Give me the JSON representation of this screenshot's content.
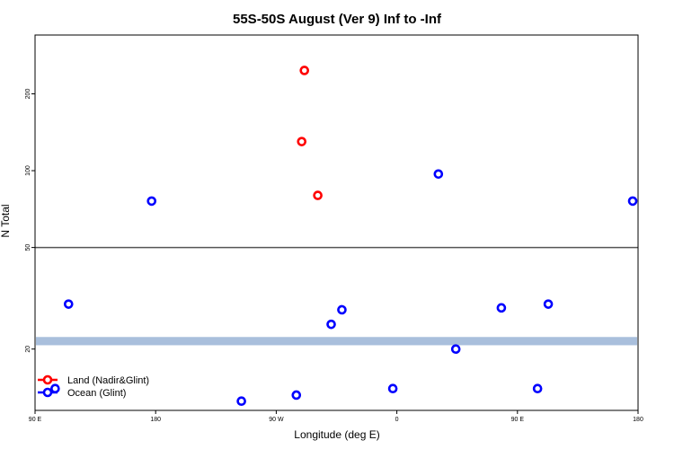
{
  "chart_data": {
    "type": "scatter",
    "title": "55S-50S August (Ver 9)   Inf to -Inf",
    "xlabel": "Longitude (deg E)",
    "ylabel": "N Total",
    "y_scale": "log",
    "x_ticks": [
      {
        "value": 0,
        "label": "90 E"
      },
      {
        "value": 90,
        "label": "180"
      },
      {
        "value": 180,
        "label": "90 W"
      },
      {
        "value": 270,
        "label": "0"
      },
      {
        "value": 360,
        "label": "90 E"
      },
      {
        "value": 450,
        "label": "180"
      }
    ],
    "xlim": [
      0,
      450
    ],
    "ylim": [
      11.5,
      340
    ],
    "y_ticks": [
      20,
      50,
      100,
      200
    ],
    "reference_line": 50,
    "band": {
      "low": 20.7,
      "high": 22.3,
      "color": "#a9bfdc"
    },
    "legend_position": "bottom-left",
    "series": [
      {
        "name": "Land (Nadir&Glint)",
        "color": "#ff0000",
        "points": [
          {
            "x": 201,
            "y": 247
          },
          {
            "x": 199,
            "y": 130
          },
          {
            "x": 211,
            "y": 80
          }
        ]
      },
      {
        "name": "Ocean (Glint)",
        "color": "#0000ff",
        "points": [
          {
            "x": 15,
            "y": 14
          },
          {
            "x": 25,
            "y": 30
          },
          {
            "x": 87,
            "y": 76
          },
          {
            "x": 154,
            "y": 12.5
          },
          {
            "x": 195,
            "y": 13.2
          },
          {
            "x": 221,
            "y": 25
          },
          {
            "x": 229,
            "y": 28.5
          },
          {
            "x": 267,
            "y": 14
          },
          {
            "x": 301,
            "y": 97
          },
          {
            "x": 314,
            "y": 20
          },
          {
            "x": 348,
            "y": 29
          },
          {
            "x": 375,
            "y": 14
          },
          {
            "x": 383,
            "y": 30
          },
          {
            "x": 446,
            "y": 76
          }
        ]
      }
    ]
  }
}
